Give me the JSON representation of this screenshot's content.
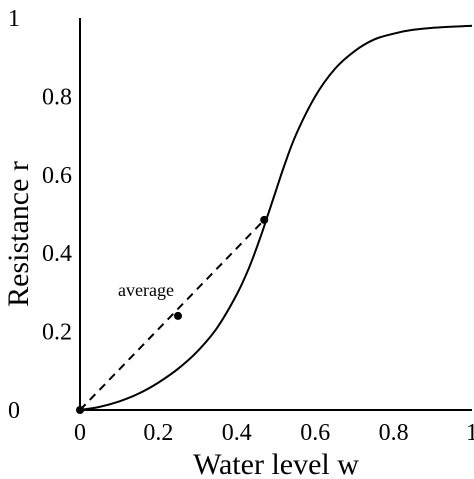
{
  "chart_data": {
    "type": "line",
    "xlabel": "Water level w",
    "ylabel": "Resistance r",
    "xlim": [
      0,
      1
    ],
    "ylim": [
      0,
      1
    ],
    "x_ticks": [
      "0",
      "0.2",
      "0.4",
      "0.6",
      "0.8",
      "1"
    ],
    "y_ticks": [
      "0",
      "0.2",
      "0.4",
      "0.6",
      "0.8",
      "1"
    ],
    "grid": false,
    "legend": "none",
    "series": [
      {
        "style": "solid",
        "x": [
          0,
          0.05,
          0.1,
          0.15,
          0.2,
          0.25,
          0.3,
          0.35,
          0.4,
          0.43,
          0.46,
          0.48,
          0.5,
          0.52,
          0.55,
          0.6,
          0.65,
          0.7,
          0.75,
          0.8,
          0.85,
          0.9,
          0.95,
          1.0
        ],
        "y": [
          0,
          0.008,
          0.022,
          0.042,
          0.07,
          0.105,
          0.15,
          0.21,
          0.295,
          0.36,
          0.44,
          0.5,
          0.56,
          0.62,
          0.7,
          0.8,
          0.87,
          0.915,
          0.945,
          0.96,
          0.97,
          0.975,
          0.978,
          0.98
        ]
      },
      {
        "style": "dashed",
        "x": [
          0,
          0.47
        ],
        "y": [
          0,
          0.485
        ]
      }
    ],
    "points": [
      {
        "x": 0,
        "y": 0
      },
      {
        "x": 0.25,
        "y": 0.24
      },
      {
        "x": 0.47,
        "y": 0.485
      }
    ],
    "annotations": [
      {
        "text": "average",
        "x": 0.25,
        "y": 0.24
      }
    ]
  }
}
